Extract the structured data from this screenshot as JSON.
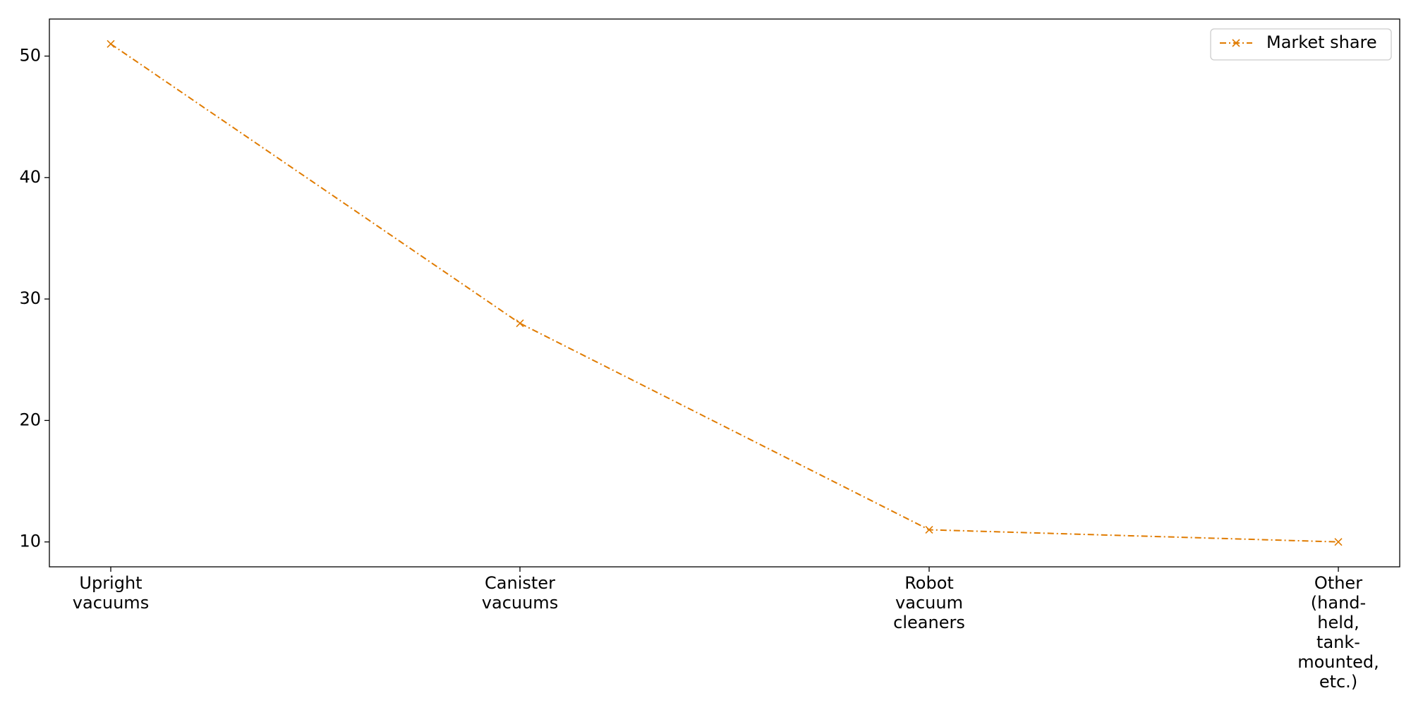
{
  "chart_data": {
    "type": "line",
    "title": "",
    "xlabel": "",
    "ylabel": "",
    "categories": [
      "Upright\nvacuums",
      "Canister\nvacuums",
      "Robot\nvacuum\ncleaners",
      "Other\n(hand-\nheld,\ntank-\nmounted,\netc.)"
    ],
    "series": [
      {
        "name": "Market share",
        "values": [
          51,
          28,
          11,
          10
        ],
        "color": "#e07b00",
        "line_style": "dash-dot",
        "marker": "x"
      }
    ],
    "y_ticks": [
      10,
      20,
      30,
      40,
      50
    ],
    "ylim": [
      7.95,
      53.05
    ],
    "grid": false,
    "legend_position": "top-right"
  }
}
